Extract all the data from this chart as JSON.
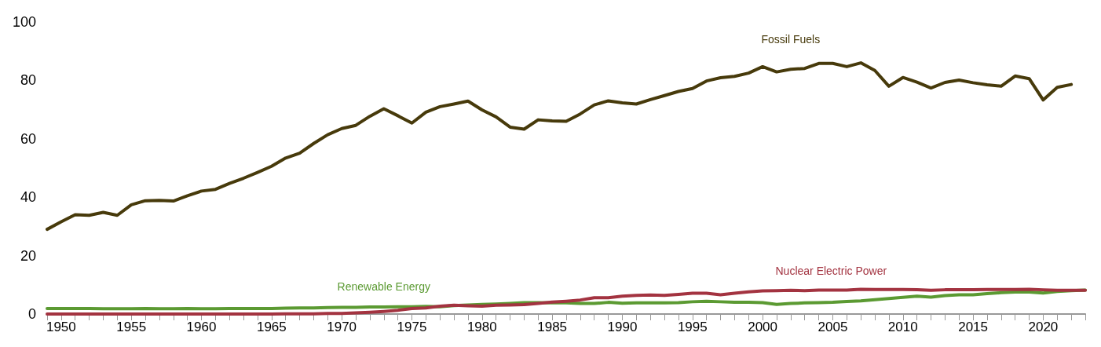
{
  "chart_data": {
    "type": "line",
    "x": [
      1949,
      1950,
      1951,
      1952,
      1953,
      1954,
      1955,
      1956,
      1957,
      1958,
      1959,
      1960,
      1961,
      1962,
      1963,
      1964,
      1965,
      1966,
      1967,
      1968,
      1969,
      1970,
      1971,
      1972,
      1973,
      1974,
      1975,
      1976,
      1977,
      1978,
      1979,
      1980,
      1981,
      1982,
      1983,
      1984,
      1985,
      1986,
      1987,
      1988,
      1989,
      1990,
      1991,
      1992,
      1993,
      1994,
      1995,
      1996,
      1997,
      1998,
      1999,
      2000,
      2001,
      2002,
      2003,
      2004,
      2005,
      2006,
      2007,
      2008,
      2009,
      2010,
      2011,
      2012,
      2013,
      2014,
      2015,
      2016,
      2017,
      2018,
      2019,
      2020,
      2021,
      2022,
      2023
    ],
    "series": [
      {
        "name": "Fossil Fuels",
        "color": "#473a0b",
        "values": [
          29.0,
          31.6,
          34.0,
          33.8,
          34.8,
          33.8,
          37.4,
          38.8,
          38.9,
          38.7,
          40.5,
          42.1,
          42.7,
          44.7,
          46.5,
          48.5,
          50.6,
          53.4,
          55.1,
          58.4,
          61.4,
          63.5,
          64.6,
          67.7,
          70.3,
          67.9,
          65.4,
          69.1,
          71.0,
          71.9,
          72.9,
          69.9,
          67.5,
          64.0,
          63.3,
          66.5,
          66.1,
          66.0,
          68.5,
          71.6,
          73.0,
          72.3,
          71.9,
          73.4,
          74.8,
          76.2,
          77.2,
          79.8,
          80.9,
          81.4,
          82.5,
          84.7,
          82.9,
          83.8,
          84.1,
          85.8,
          85.8,
          84.7,
          86.0,
          83.4,
          78.0,
          81.0,
          79.4,
          77.4,
          79.3,
          80.1,
          79.2,
          78.5,
          78.0,
          81.5,
          80.6,
          73.3,
          77.6,
          78.6,
          null
        ]
      },
      {
        "name": "Nuclear Electric Power",
        "color": "#a33340",
        "values": [
          0,
          0,
          0,
          0,
          0,
          0,
          0,
          0,
          0,
          0,
          0,
          0,
          0,
          0,
          0,
          0,
          0,
          0.1,
          0.1,
          0.1,
          0.2,
          0.2,
          0.4,
          0.6,
          0.9,
          1.3,
          1.9,
          2.1,
          2.7,
          3.0,
          2.8,
          2.7,
          3.0,
          3.1,
          3.2,
          3.6,
          4.1,
          4.4,
          4.8,
          5.6,
          5.6,
          6.1,
          6.4,
          6.5,
          6.4,
          6.7,
          7.1,
          7.1,
          6.6,
          7.1,
          7.6,
          7.9,
          8.0,
          8.1,
          8.0,
          8.2,
          8.2,
          8.2,
          8.5,
          8.4,
          8.4,
          8.4,
          8.3,
          8.1,
          8.3,
          8.3,
          8.3,
          8.4,
          8.4,
          8.4,
          8.5,
          8.3,
          8.1,
          8.1,
          8.1
        ]
      },
      {
        "name": "Renewable Energy",
        "color": "#5b9a32",
        "values": [
          1.9,
          1.9,
          1.9,
          1.9,
          1.8,
          1.8,
          1.8,
          1.9,
          1.8,
          1.8,
          1.9,
          1.8,
          1.8,
          1.9,
          1.9,
          1.9,
          1.9,
          2.0,
          2.1,
          2.1,
          2.2,
          2.3,
          2.3,
          2.4,
          2.4,
          2.5,
          2.5,
          2.6,
          2.5,
          2.9,
          3.1,
          3.3,
          3.4,
          3.6,
          3.9,
          3.9,
          3.8,
          3.8,
          3.6,
          3.6,
          4.0,
          3.7,
          3.8,
          3.8,
          3.8,
          3.9,
          4.2,
          4.4,
          4.2,
          4.0,
          4.0,
          3.9,
          3.3,
          3.6,
          3.8,
          3.9,
          4.0,
          4.3,
          4.5,
          4.9,
          5.3,
          5.7,
          6.1,
          5.8,
          6.3,
          6.6,
          6.6,
          7.0,
          7.3,
          7.5,
          7.5,
          7.2,
          7.7,
          8.0,
          8.2
        ]
      }
    ],
    "xlim": [
      1949,
      2023
    ],
    "xticks": [
      {
        "value": 1949,
        "label": null
      },
      1950,
      {
        "value": 1951,
        "label": null
      },
      {
        "value": 1952,
        "label": null
      },
      {
        "value": 1953,
        "label": null
      },
      {
        "value": 1954,
        "label": null
      },
      1955,
      {
        "value": 1956,
        "label": null
      },
      {
        "value": 1957,
        "label": null
      },
      {
        "value": 1958,
        "label": null
      },
      {
        "value": 1959,
        "label": null
      },
      1960,
      {
        "value": 1961,
        "label": null
      },
      {
        "value": 1962,
        "label": null
      },
      {
        "value": 1963,
        "label": null
      },
      {
        "value": 1964,
        "label": null
      },
      1965,
      {
        "value": 1966,
        "label": null
      },
      {
        "value": 1967,
        "label": null
      },
      {
        "value": 1968,
        "label": null
      },
      {
        "value": 1969,
        "label": null
      },
      1970,
      {
        "value": 1971,
        "label": null
      },
      {
        "value": 1972,
        "label": null
      },
      {
        "value": 1973,
        "label": null
      },
      {
        "value": 1974,
        "label": null
      },
      1975,
      {
        "value": 1976,
        "label": null
      },
      {
        "value": 1977,
        "label": null
      },
      {
        "value": 1978,
        "label": null
      },
      {
        "value": 1979,
        "label": null
      },
      1980,
      {
        "value": 1981,
        "label": null
      },
      {
        "value": 1982,
        "label": null
      },
      {
        "value": 1983,
        "label": null
      },
      {
        "value": 1984,
        "label": null
      },
      1985,
      {
        "value": 1986,
        "label": null
      },
      {
        "value": 1987,
        "label": null
      },
      {
        "value": 1988,
        "label": null
      },
      {
        "value": 1989,
        "label": null
      },
      1990,
      {
        "value": 1991,
        "label": null
      },
      {
        "value": 1992,
        "label": null
      },
      {
        "value": 1993,
        "label": null
      },
      {
        "value": 1994,
        "label": null
      },
      1995,
      {
        "value": 1996,
        "label": null
      },
      {
        "value": 1997,
        "label": null
      },
      {
        "value": 1998,
        "label": null
      },
      {
        "value": 1999,
        "label": null
      },
      2000,
      {
        "value": 2001,
        "label": null
      },
      {
        "value": 2002,
        "label": null
      },
      {
        "value": 2003,
        "label": null
      },
      {
        "value": 2004,
        "label": null
      },
      2005,
      {
        "value": 2006,
        "label": null
      },
      {
        "value": 2007,
        "label": null
      },
      {
        "value": 2008,
        "label": null
      },
      {
        "value": 2009,
        "label": null
      },
      2010,
      {
        "value": 2011,
        "label": null
      },
      {
        "value": 2012,
        "label": null
      },
      {
        "value": 2013,
        "label": null
      },
      {
        "value": 2014,
        "label": null
      },
      2015,
      {
        "value": 2016,
        "label": null
      },
      {
        "value": 2017,
        "label": null
      },
      {
        "value": 2018,
        "label": null
      },
      {
        "value": 2019,
        "label": null
      },
      2020,
      {
        "value": 2021,
        "label": null
      },
      {
        "value": 2022,
        "label": null
      },
      {
        "value": 2023,
        "label": null
      }
    ],
    "ylim": [
      0,
      100
    ],
    "yticks": [
      0,
      20,
      40,
      60,
      80,
      100
    ],
    "grid": false,
    "legend": false,
    "marker": "none",
    "line_style": "solid"
  }
}
